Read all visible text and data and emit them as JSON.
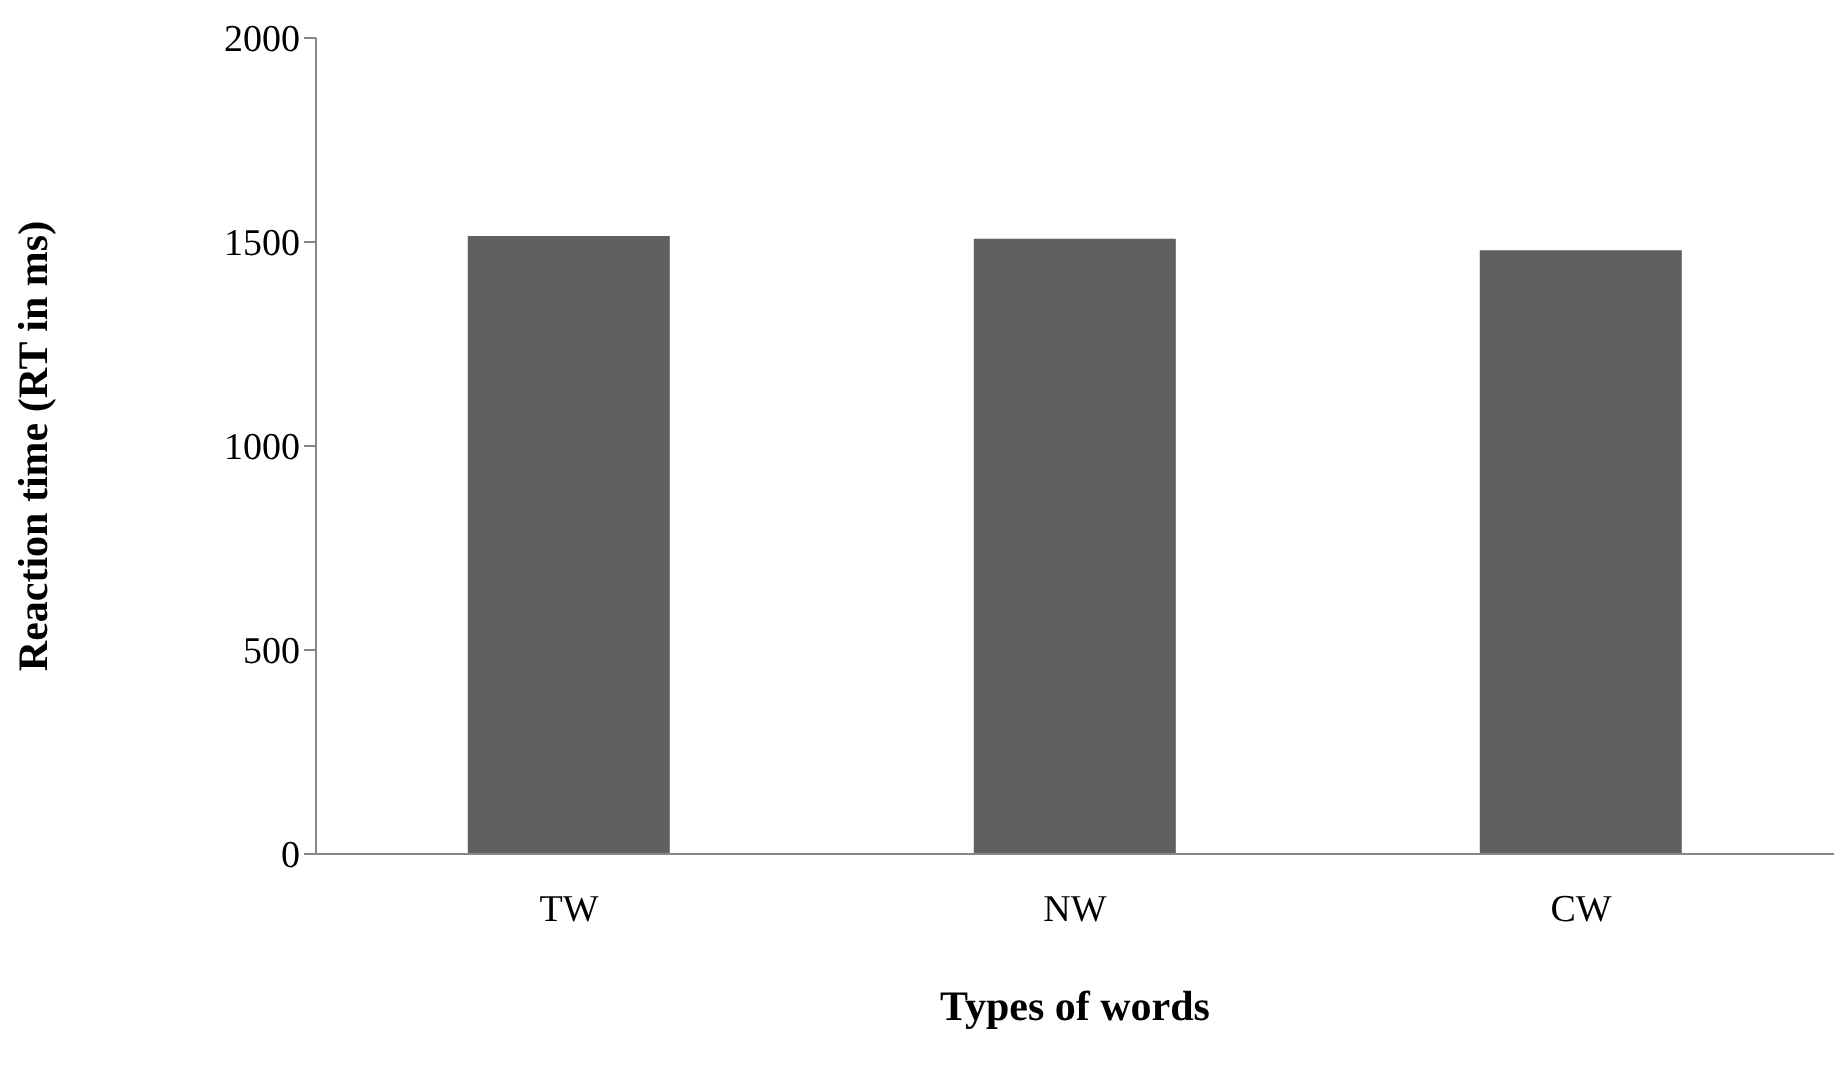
{
  "chart_data": {
    "type": "bar",
    "xlabel": "Types of words",
    "ylabel": "Reaction time (RT in ms)",
    "categories": [
      "TW",
      "NW",
      "CW"
    ],
    "values": [
      1515,
      1508,
      1480
    ],
    "color": "#606060",
    "ylim": [
      0,
      2000
    ],
    "yticks": [
      0,
      500,
      1000,
      1500,
      2000
    ],
    "grid": false,
    "legend": false
  }
}
